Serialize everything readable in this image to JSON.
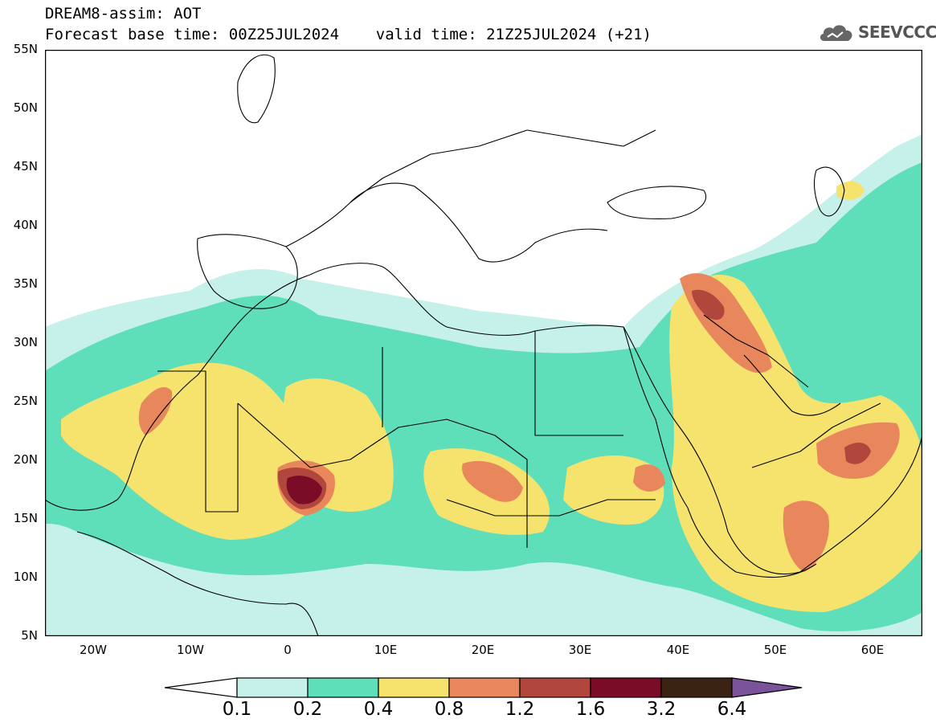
{
  "header": {
    "title": "DREAM8-assim: AOT",
    "subtitle": "Forecast base time: 00Z25JUL2024    valid time: 21Z25JUL2024 (+21)"
  },
  "logo": {
    "text": "SEEVCCC",
    "icon": "cloud-icon"
  },
  "map": {
    "lat_labels": [
      "55N",
      "50N",
      "45N",
      "40N",
      "35N",
      "30N",
      "25N",
      "20N",
      "15N",
      "10N",
      "5N"
    ],
    "lon_labels": [
      "20W",
      "10W",
      "0",
      "10E",
      "20E",
      "30E",
      "40E",
      "50E",
      "60E"
    ],
    "extent": {
      "lon_min": -25,
      "lon_max": 65,
      "lat_min": 5,
      "lat_max": 55
    }
  },
  "legend": {
    "labels": [
      "0.1",
      "0.2",
      "0.4",
      "0.8",
      "1.2",
      "1.6",
      "3.2",
      "6.4"
    ],
    "colors": [
      "#ffffff",
      "#c6f1ea",
      "#5edfba",
      "#f5e36e",
      "#e8875c",
      "#b1473c",
      "#7a0c28",
      "#3b2313",
      "#7a539b"
    ]
  },
  "colors": {
    "c01": "#c6f1ea",
    "c02": "#5edfba",
    "c04": "#f5e36e",
    "c08": "#e8875c",
    "c12": "#b1473c",
    "c16": "#7a0c28"
  }
}
